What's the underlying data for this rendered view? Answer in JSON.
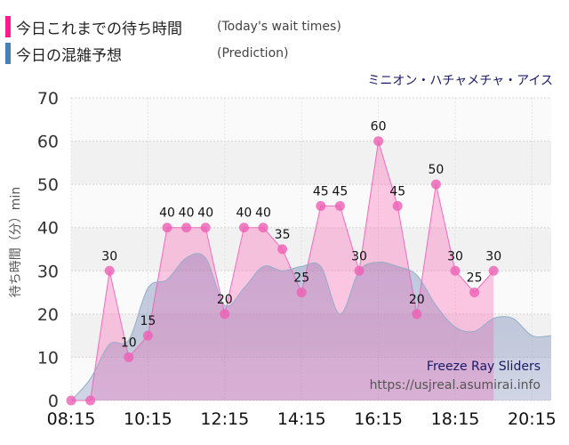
{
  "legend": {
    "today_label": "今日これまでの待ち時間",
    "today_en": "(Today's wait times)",
    "prediction_label": "今日の混雑予想",
    "prediction_en": "(Prediction)",
    "today_color": "#ff1a8c",
    "prediction_color": "#4682b4"
  },
  "attraction_name": "ミニオン・ハチャメチャ・アイス",
  "watermark": {
    "line1": "Freeze Ray Sliders",
    "line2": "https://usjreal.asumirai.info"
  },
  "chart_data": {
    "type": "area",
    "ylabel": "待ち時間（分）min",
    "ylim": [
      0,
      70
    ],
    "yticks": [
      0,
      10,
      20,
      30,
      40,
      50,
      60,
      70
    ],
    "xlim": [
      "08:15",
      "20:45"
    ],
    "xticks": [
      "08:15",
      "10:15",
      "12:15",
      "14:15",
      "16:15",
      "18:15",
      "20:15"
    ],
    "grid": true,
    "series": [
      {
        "name": "今日これまでの待ち時間",
        "color": "#ff1a8c",
        "x": [
          "08:15",
          "08:45",
          "09:15",
          "09:45",
          "10:15",
          "10:45",
          "11:15",
          "11:45",
          "12:15",
          "12:45",
          "13:15",
          "13:45",
          "14:15",
          "14:45",
          "15:15",
          "15:45",
          "16:15",
          "16:45",
          "17:15",
          "17:45",
          "18:15",
          "18:45",
          "19:15"
        ],
        "values": [
          0,
          0,
          30,
          10,
          15,
          40,
          40,
          40,
          20,
          40,
          40,
          35,
          25,
          45,
          45,
          30,
          60,
          45,
          20,
          50,
          30,
          25,
          30
        ]
      },
      {
        "name": "今日の混雑予想",
        "color": "#4682b4",
        "x": [
          "08:15",
          "08:45",
          "09:15",
          "09:45",
          "10:15",
          "10:45",
          "11:15",
          "11:45",
          "12:15",
          "12:45",
          "13:15",
          "13:45",
          "14:15",
          "14:45",
          "15:15",
          "15:45",
          "16:15",
          "16:45",
          "17:15",
          "17:45",
          "18:15",
          "18:45",
          "19:15",
          "19:45",
          "20:15",
          "20:45"
        ],
        "values": [
          0,
          5,
          13,
          14,
          26,
          28,
          33,
          33,
          22,
          26,
          31,
          30,
          31,
          31,
          20,
          30,
          32,
          31,
          29,
          22,
          17,
          16,
          19,
          19,
          15,
          15
        ]
      }
    ]
  }
}
